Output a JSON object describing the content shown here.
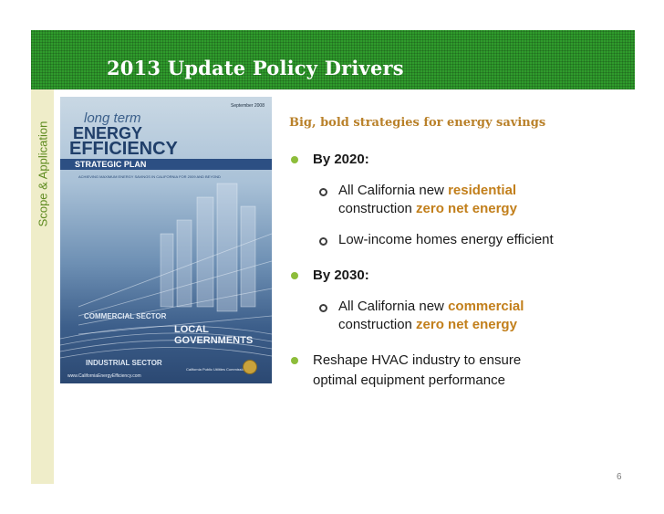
{
  "slide": {
    "title": "2013 Update Policy Drivers",
    "section_label": "Scope & Application",
    "page_number": "6",
    "colors": {
      "header_green": "#2f9b2c",
      "sidebar_cream": "#efedc9",
      "accent_orange": "#c27f1b",
      "bullet_green": "#8dbd3a"
    }
  },
  "cover": {
    "date": "September 2008",
    "title_small": "long term",
    "title_energy": "ENERGY",
    "title_efficiency": "EFFICIENCY",
    "title_plan": "STRATEGIC PLAN",
    "achieving": "ACHIEVING MAXIMUM ENERGY SAVINGS IN CALIFORNIA FOR 2009 AND BEYOND",
    "commercial": "COMMERCIAL SECTOR",
    "local": "LOCAL GOVERNMENTS",
    "industrial": "INDUSTRIAL SECTOR",
    "url": "www.CaliforniaEnergyEfficiency.com",
    "cpuc": "California Public Utilities Commission"
  },
  "content": {
    "subhead": "Big, bold strategies for energy savings",
    "b1": "By 2020:",
    "b1s1_pre": "All California new ",
    "b1s1_hl": "residential",
    "b1s1_l2_pre": "construction ",
    "b1s1_l2_hl": "zero net energy",
    "b1s2": "Low-income homes energy efficient",
    "b2": "By 2030:",
    "b2s1_pre": "All California new ",
    "b2s1_hl": "commercial",
    "b2s1_l2_pre": "construction ",
    "b2s1_l2_hl": "zero net energy",
    "b3_l1": "Reshape HVAC industry to ensure",
    "b3_l2": "optimal equipment performance"
  }
}
